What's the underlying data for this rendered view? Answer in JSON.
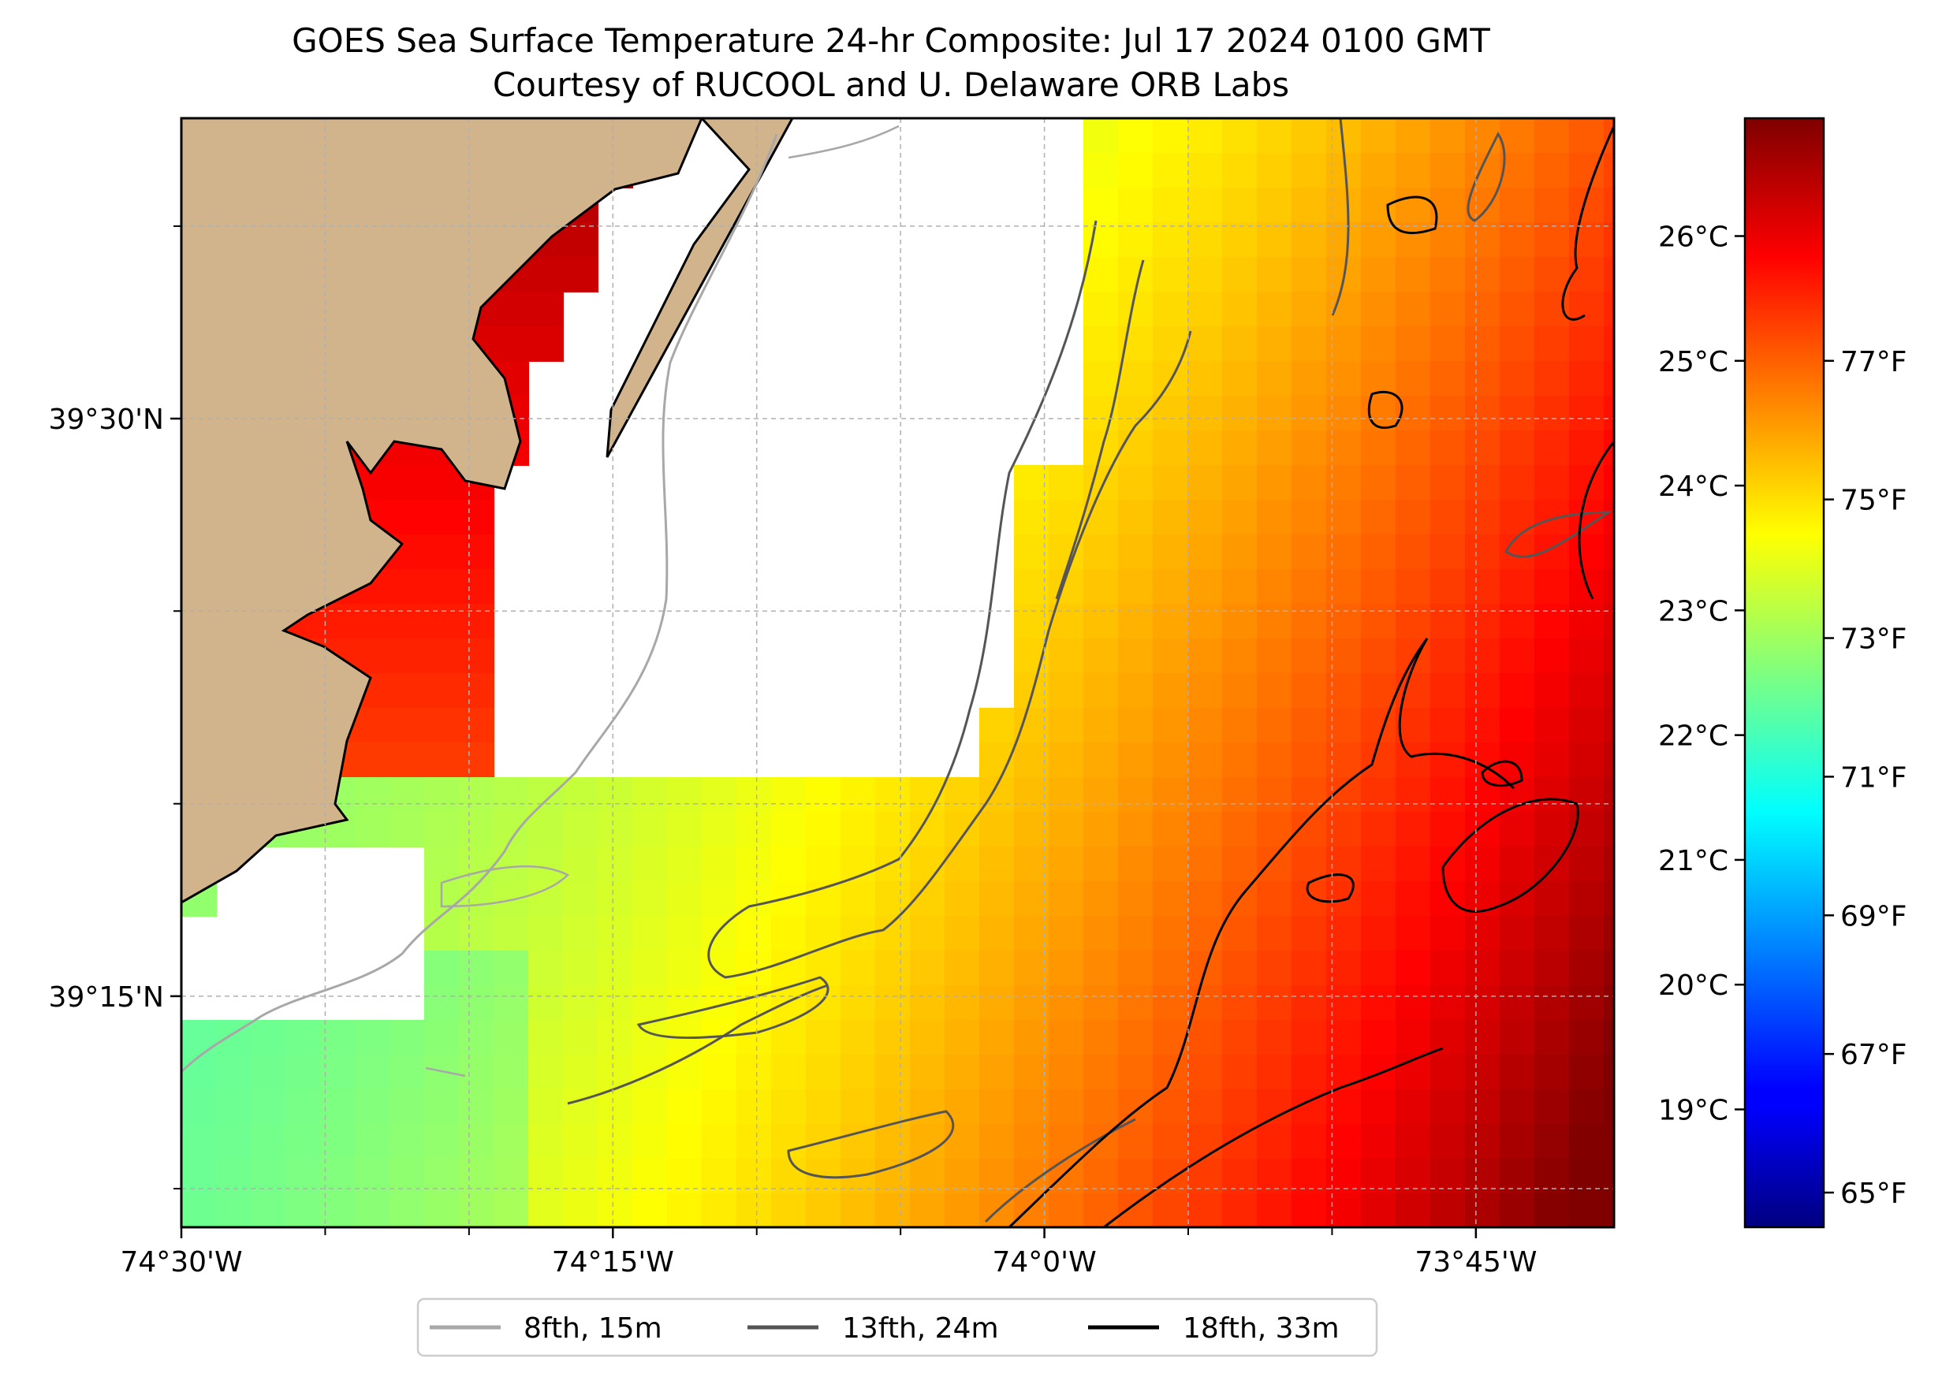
{
  "title": {
    "line1": "GOES Sea Surface Temperature 24-hr Composite: Jul 17 2024 0100 GMT",
    "line2": "Courtesy of RUCOOL and U. Delaware ORB Labs"
  },
  "map": {
    "lon_range": [
      -74.5,
      -73.67
    ],
    "lat_range": [
      39.15,
      39.63
    ],
    "lon_ticks": [
      {
        "value": -74.5,
        "label": "74°30'W"
      },
      {
        "value": -74.25,
        "label": "74°15'W"
      },
      {
        "value": -74.0,
        "label": "74°0'W"
      },
      {
        "value": -73.75,
        "label": "73°45'W"
      }
    ],
    "lat_ticks": [
      {
        "value": 39.5,
        "label": "39°30'N"
      },
      {
        "value": 39.25,
        "label": "39°15'N"
      }
    ],
    "gridlines": true,
    "land_color": "#d2b48c",
    "nodata_color": "#ffffff"
  },
  "colorbar": {
    "colormap": "jet",
    "range_f": [
      64.5,
      80.5
    ],
    "celsius_ticks": [
      "26°C",
      "25°C",
      "24°C",
      "23°C",
      "22°C",
      "21°C",
      "20°C",
      "19°C"
    ],
    "fahrenheit_ticks": [
      "77°F",
      "75°F",
      "73°F",
      "71°F",
      "69°F",
      "67°F",
      "65°F"
    ]
  },
  "legend": {
    "placement": "bottom-center",
    "items": [
      {
        "label": "8fth, 15m",
        "color": "#a8a8a8"
      },
      {
        "label": "13fth, 24m",
        "color": "#555555"
      },
      {
        "label": "18fth, 33m",
        "color": "#000000"
      }
    ]
  }
}
